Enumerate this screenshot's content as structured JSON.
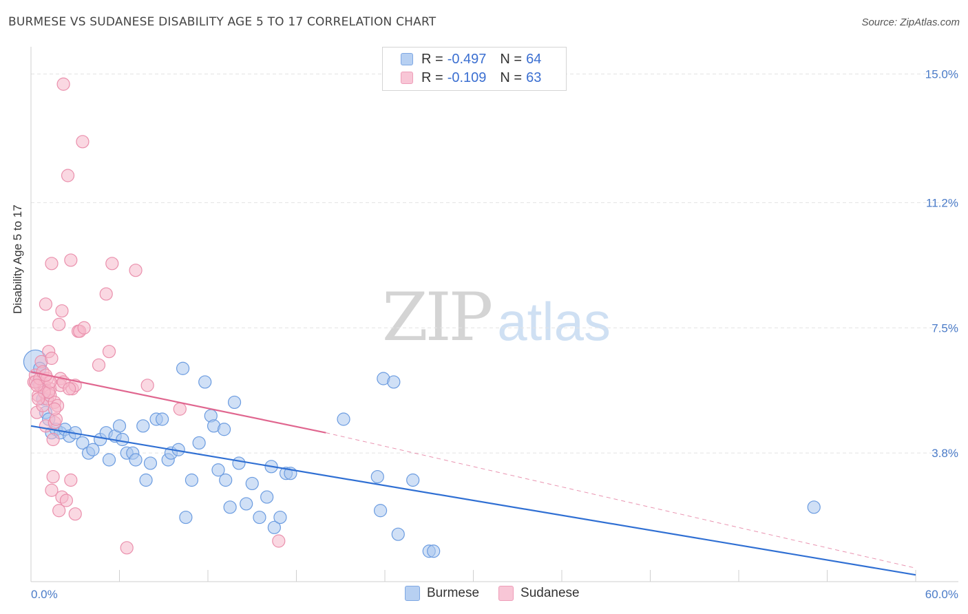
{
  "header": {
    "title": "BURMESE VS SUDANESE DISABILITY AGE 5 TO 17 CORRELATION CHART",
    "source": "Source: ZipAtlas.com"
  },
  "watermark": {
    "zip": "ZIP",
    "atlas": "atlas"
  },
  "legend": {
    "burmese": {
      "r_label": "R = ",
      "r_value": "-0.497",
      "n_label": "N = ",
      "n_value": "64"
    },
    "sudanese": {
      "r_label": "R = ",
      "r_value": "-0.109",
      "n_label": "N = ",
      "n_value": "63"
    }
  },
  "bottom_legend": {
    "burmese": "Burmese",
    "sudanese": "Sudanese"
  },
  "chart_data": {
    "type": "scatter",
    "title": "BURMESE VS SUDANESE DISABILITY AGE 5 TO 17 CORRELATION CHART",
    "xlabel": "",
    "ylabel": "Disability Age 5 to 17",
    "xlim": [
      0,
      60
    ],
    "ylim": [
      0,
      15.6
    ],
    "y_ticks": [
      3.8,
      7.5,
      11.2,
      15.0
    ],
    "y_tick_labels": [
      "3.8%",
      "7.5%",
      "11.2%",
      "15.0%"
    ],
    "x_tick_labels": [
      "0.0%",
      "60.0%"
    ],
    "grid": "horizontal dashed",
    "legend_position": "top-center",
    "colors": {
      "burmese_fill": "#a9c7ef",
      "burmese_stroke": "#6a9be0",
      "burmese_line": "#2f6fd3",
      "sudanese_fill": "#f5b8cb",
      "sudanese_stroke": "#ea8fac",
      "sudanese_line": "#e0668f"
    },
    "series": [
      {
        "name": "Burmese",
        "trend": {
          "x": [
            0,
            60
          ],
          "y": [
            4.6,
            0.2
          ]
        },
        "points": [
          [
            0.3,
            6.5
          ],
          [
            0.5,
            5.9
          ],
          [
            0.6,
            6.3
          ],
          [
            0.8,
            5.4
          ],
          [
            1.0,
            5.0
          ],
          [
            1.2,
            4.8
          ],
          [
            1.4,
            4.4
          ],
          [
            1.7,
            4.5
          ],
          [
            2.0,
            4.4
          ],
          [
            2.3,
            4.5
          ],
          [
            2.6,
            4.3
          ],
          [
            3.0,
            4.4
          ],
          [
            3.5,
            4.1
          ],
          [
            3.9,
            3.8
          ],
          [
            4.2,
            3.9
          ],
          [
            4.7,
            4.2
          ],
          [
            5.1,
            4.4
          ],
          [
            5.3,
            3.6
          ],
          [
            5.7,
            4.3
          ],
          [
            6.0,
            4.6
          ],
          [
            6.2,
            4.2
          ],
          [
            6.5,
            3.8
          ],
          [
            6.9,
            3.8
          ],
          [
            7.1,
            3.6
          ],
          [
            7.6,
            4.6
          ],
          [
            7.8,
            3.0
          ],
          [
            8.1,
            3.5
          ],
          [
            8.5,
            4.8
          ],
          [
            8.9,
            4.8
          ],
          [
            9.3,
            3.6
          ],
          [
            9.5,
            3.8
          ],
          [
            10.0,
            3.9
          ],
          [
            10.3,
            6.3
          ],
          [
            10.5,
            1.9
          ],
          [
            10.9,
            3.0
          ],
          [
            11.4,
            4.1
          ],
          [
            11.8,
            5.9
          ],
          [
            12.2,
            4.9
          ],
          [
            12.4,
            4.6
          ],
          [
            12.7,
            3.3
          ],
          [
            13.1,
            4.5
          ],
          [
            13.2,
            3.0
          ],
          [
            13.5,
            2.2
          ],
          [
            13.8,
            5.3
          ],
          [
            14.1,
            3.5
          ],
          [
            14.6,
            2.3
          ],
          [
            15.0,
            2.9
          ],
          [
            15.5,
            1.9
          ],
          [
            16.0,
            2.5
          ],
          [
            16.3,
            3.4
          ],
          [
            16.5,
            1.6
          ],
          [
            16.9,
            1.9
          ],
          [
            17.3,
            3.2
          ],
          [
            17.6,
            3.2
          ],
          [
            21.2,
            4.8
          ],
          [
            23.5,
            3.1
          ],
          [
            23.7,
            2.1
          ],
          [
            23.9,
            6.0
          ],
          [
            24.6,
            5.9
          ],
          [
            24.9,
            1.4
          ],
          [
            25.9,
            3.0
          ],
          [
            27.0,
            0.9
          ],
          [
            27.3,
            0.9
          ],
          [
            53.1,
            2.2
          ]
        ]
      },
      {
        "name": "Sudanese",
        "trend": {
          "x": [
            0,
            20
          ],
          "y": [
            6.2,
            4.4
          ]
        },
        "trend_extension": {
          "x": [
            20,
            60
          ],
          "y": [
            4.4,
            0.4
          ]
        },
        "points": [
          [
            0.2,
            5.9
          ],
          [
            0.3,
            6.1
          ],
          [
            0.4,
            5.0
          ],
          [
            0.5,
            5.5
          ],
          [
            0.6,
            5.8
          ],
          [
            0.7,
            6.5
          ],
          [
            0.8,
            5.2
          ],
          [
            0.9,
            5.8
          ],
          [
            1.0,
            4.6
          ],
          [
            1.0,
            8.2
          ],
          [
            1.1,
            5.4
          ],
          [
            1.2,
            6.8
          ],
          [
            1.3,
            5.7
          ],
          [
            1.3,
            5.5
          ],
          [
            1.4,
            9.4
          ],
          [
            1.4,
            2.7
          ],
          [
            1.5,
            4.2
          ],
          [
            1.5,
            3.1
          ],
          [
            1.6,
            5.3
          ],
          [
            1.6,
            4.7
          ],
          [
            1.8,
            5.2
          ],
          [
            1.9,
            7.6
          ],
          [
            1.9,
            2.1
          ],
          [
            2.0,
            6.0
          ],
          [
            2.0,
            5.8
          ],
          [
            2.1,
            8.0
          ],
          [
            2.1,
            2.5
          ],
          [
            2.2,
            14.7
          ],
          [
            2.4,
            2.4
          ],
          [
            2.5,
            12.0
          ],
          [
            2.7,
            9.5
          ],
          [
            2.7,
            3.0
          ],
          [
            2.8,
            5.7
          ],
          [
            3.0,
            5.8
          ],
          [
            3.0,
            2.0
          ],
          [
            3.2,
            7.4
          ],
          [
            3.3,
            7.4
          ],
          [
            3.5,
            13.0
          ],
          [
            3.6,
            7.5
          ],
          [
            4.6,
            6.4
          ],
          [
            5.1,
            8.5
          ],
          [
            5.3,
            6.8
          ],
          [
            5.5,
            9.4
          ],
          [
            6.5,
            1.0
          ],
          [
            7.1,
            9.2
          ],
          [
            7.9,
            5.8
          ],
          [
            10.1,
            5.1
          ],
          [
            16.8,
            1.2
          ],
          [
            0.3,
            5.9
          ],
          [
            0.6,
            6.0
          ],
          [
            0.9,
            5.6
          ],
          [
            1.2,
            5.6
          ],
          [
            1.4,
            6.6
          ],
          [
            1.7,
            4.8
          ],
          [
            2.2,
            5.9
          ],
          [
            0.4,
            5.8
          ],
          [
            0.8,
            6.2
          ],
          [
            1.1,
            6.0
          ],
          [
            1.3,
            5.9
          ],
          [
            0.5,
            5.4
          ],
          [
            1.6,
            5.1
          ],
          [
            2.6,
            5.7
          ],
          [
            1.0,
            6.1
          ]
        ]
      }
    ]
  }
}
